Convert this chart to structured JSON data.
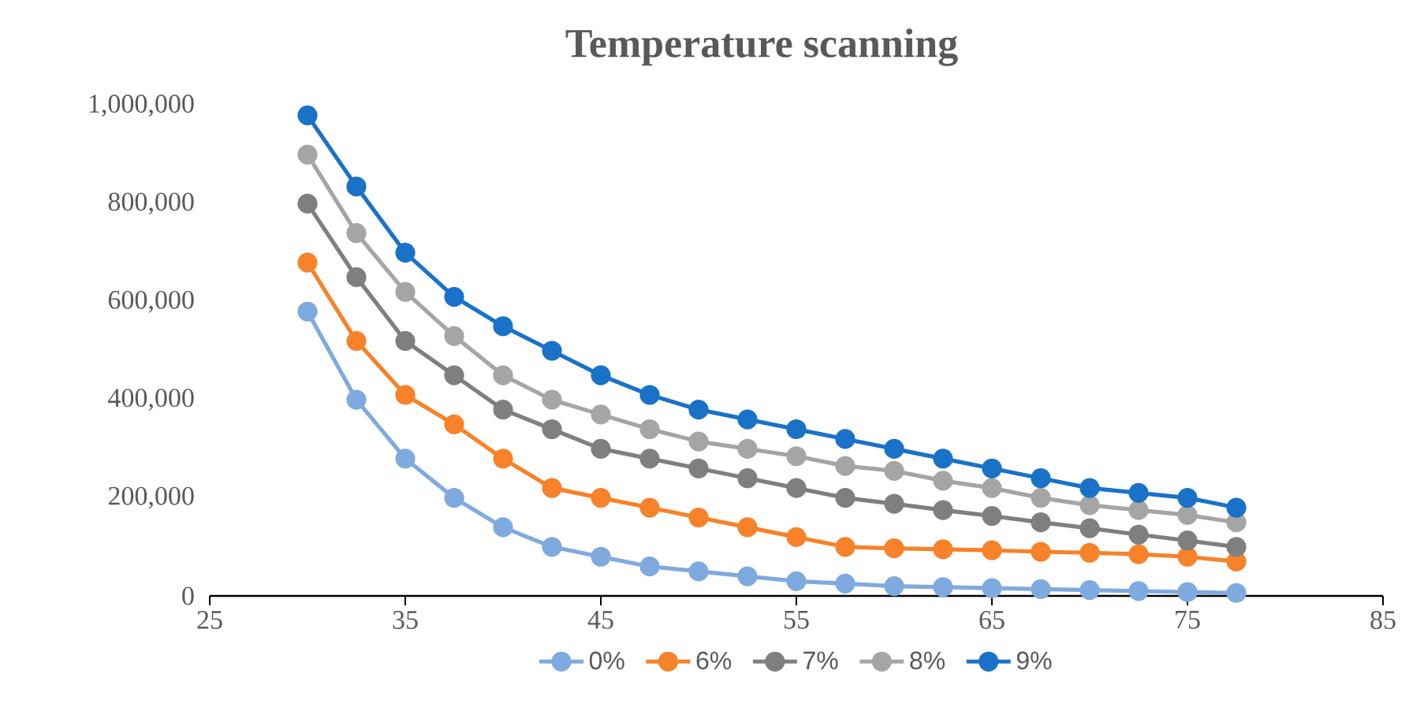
{
  "chart_data": {
    "type": "line",
    "title": "Temperature scanning",
    "x": [
      30,
      32.5,
      35,
      37.5,
      40,
      42.5,
      45,
      47.5,
      50,
      52.5,
      55,
      57.5,
      60,
      62.5,
      65,
      67.5,
      70,
      72.5,
      75,
      77.5
    ],
    "series": [
      {
        "name": "0%",
        "color": "#7faadf",
        "values": [
          580000,
          400000,
          280000,
          200000,
          140000,
          100000,
          80000,
          60000,
          50000,
          40000,
          30000,
          25000,
          20000,
          18000,
          16000,
          14000,
          12000,
          10000,
          8000,
          6000
        ]
      },
      {
        "name": "6%",
        "color": "#f7822a",
        "values": [
          680000,
          520000,
          410000,
          350000,
          280000,
          220000,
          200000,
          180000,
          160000,
          140000,
          120000,
          100000,
          97000,
          95000,
          93000,
          90000,
          88000,
          85000,
          80000,
          70000
        ]
      },
      {
        "name": "7%",
        "color": "#7f7f7f",
        "values": [
          800000,
          650000,
          520000,
          450000,
          380000,
          340000,
          300000,
          280000,
          260000,
          240000,
          220000,
          200000,
          188000,
          175000,
          163000,
          150000,
          138000,
          125000,
          113000,
          100000
        ]
      },
      {
        "name": "8%",
        "color": "#a5a5a5",
        "values": [
          900000,
          740000,
          620000,
          530000,
          450000,
          400000,
          370000,
          340000,
          315000,
          300000,
          285000,
          265000,
          255000,
          235000,
          220000,
          200000,
          185000,
          175000,
          165000,
          150000
        ]
      },
      {
        "name": "9%",
        "color": "#1a72c8",
        "values": [
          980000,
          835000,
          700000,
          610000,
          550000,
          500000,
          450000,
          410000,
          380000,
          360000,
          340000,
          320000,
          300000,
          280000,
          260000,
          240000,
          220000,
          210000,
          200000,
          180000
        ]
      }
    ],
    "xlim": [
      25,
      85
    ],
    "xticks": [
      25,
      35,
      45,
      55,
      65,
      75,
      85
    ],
    "ylim": [
      0,
      1000000
    ],
    "yticks": [
      0,
      {
        "value": 200000,
        "label": "200,000"
      },
      {
        "value": 400000,
        "label": "400,000"
      },
      {
        "value": 600000,
        "label": "600,000"
      },
      {
        "value": 800000,
        "label": "800,000"
      },
      {
        "value": 1000000,
        "label": "1,000,000"
      }
    ],
    "grid": false,
    "legend": "bottom",
    "marker": "circle",
    "line_style": "solid"
  }
}
